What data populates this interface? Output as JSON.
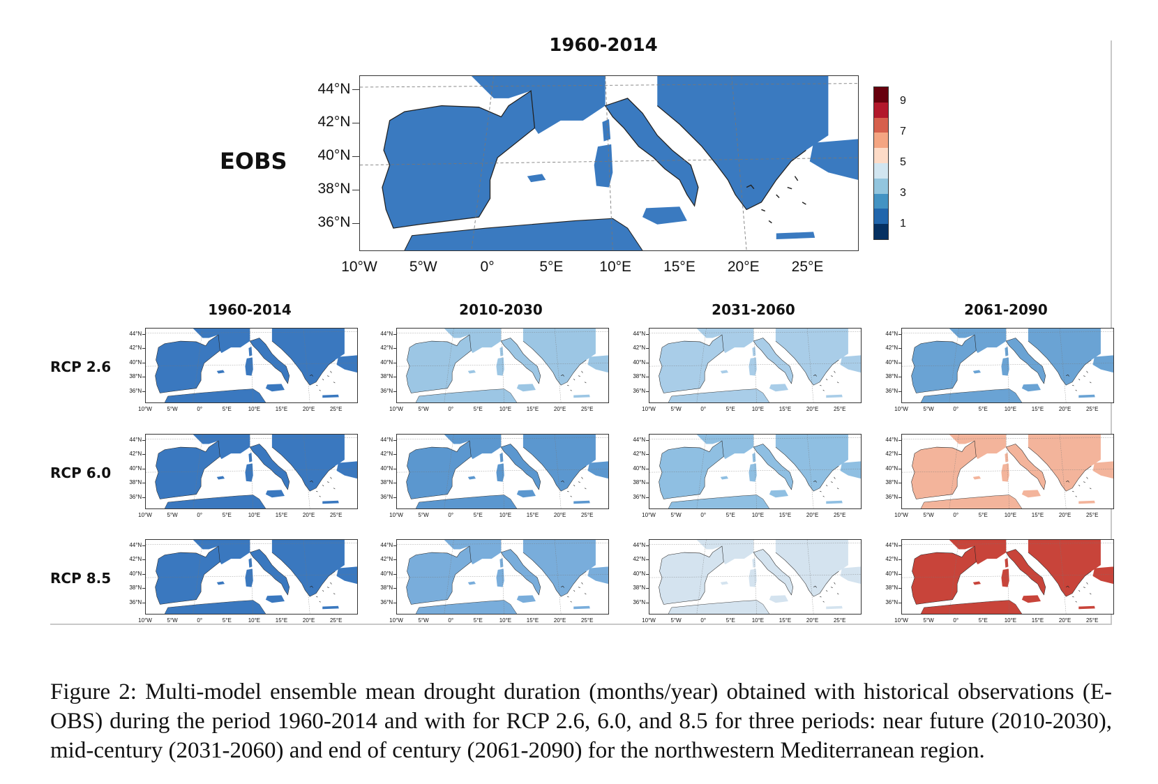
{
  "figure": {
    "top_title": "1960-2014",
    "eobs_label": "EOBS",
    "column_titles": [
      "1960-2014",
      "2010-2030",
      "2031-2060",
      "2061-2090"
    ],
    "row_labels": [
      "RCP 2.6",
      "RCP 6.0",
      "RCP 8.5"
    ],
    "lat_ticks": [
      "44°N",
      "42°N",
      "40°N",
      "38°N",
      "36°N"
    ],
    "lon_ticks": [
      "10°W",
      "5°W",
      "0°",
      "5°E",
      "10°E",
      "15°E",
      "20°E",
      "25°E"
    ],
    "colorbar": {
      "labels": [
        "9",
        "7",
        "5",
        "3",
        "1"
      ],
      "colors": [
        "#67000d",
        "#b2182b",
        "#d6604d",
        "#f4a582",
        "#fddbc7",
        "#d1e5f0",
        "#92c5de",
        "#4393c3",
        "#2166ac",
        "#053061"
      ]
    },
    "panels": {
      "eobs": {
        "fill": "#3a7ac0",
        "mottle": "#5a95cf"
      },
      "rcp26": [
        {
          "fill": "#3a78bf",
          "mottle": "#5b92cc"
        },
        {
          "fill": "#9cc6e4",
          "mottle": "#c7def0"
        },
        {
          "fill": "#a9cde8",
          "mottle": "#d6e6f2"
        },
        {
          "fill": "#6aa3d4",
          "mottle": "#9fc7e6"
        }
      ],
      "rcp60": [
        {
          "fill": "#3a78bf",
          "mottle": "#5b92cc"
        },
        {
          "fill": "#5b97cf",
          "mottle": "#8dbbe0"
        },
        {
          "fill": "#8fbfe2",
          "mottle": "#bfdaef"
        },
        {
          "fill": "#f3b49b",
          "mottle": "#e58b6d"
        }
      ],
      "rcp85": [
        {
          "fill": "#3a78bf",
          "mottle": "#5b92cc"
        },
        {
          "fill": "#79addb",
          "mottle": "#a9cbe8"
        },
        {
          "fill": "#d4e3ef",
          "mottle": "#f1c1a8"
        },
        {
          "fill": "#c8443a",
          "mottle": "#9a1a20"
        }
      ]
    }
  },
  "caption": "Figure 2: Multi-model ensemble mean drought duration (months/year) obtained with historical observations (E-OBS) during the period 1960-2014 and with for RCP 2.6, 6.0, and 8.5 for three periods: near future (2010-2030), mid-century (2031-2060) and end of century (2061-2090) for the northwestern Mediterranean region."
}
